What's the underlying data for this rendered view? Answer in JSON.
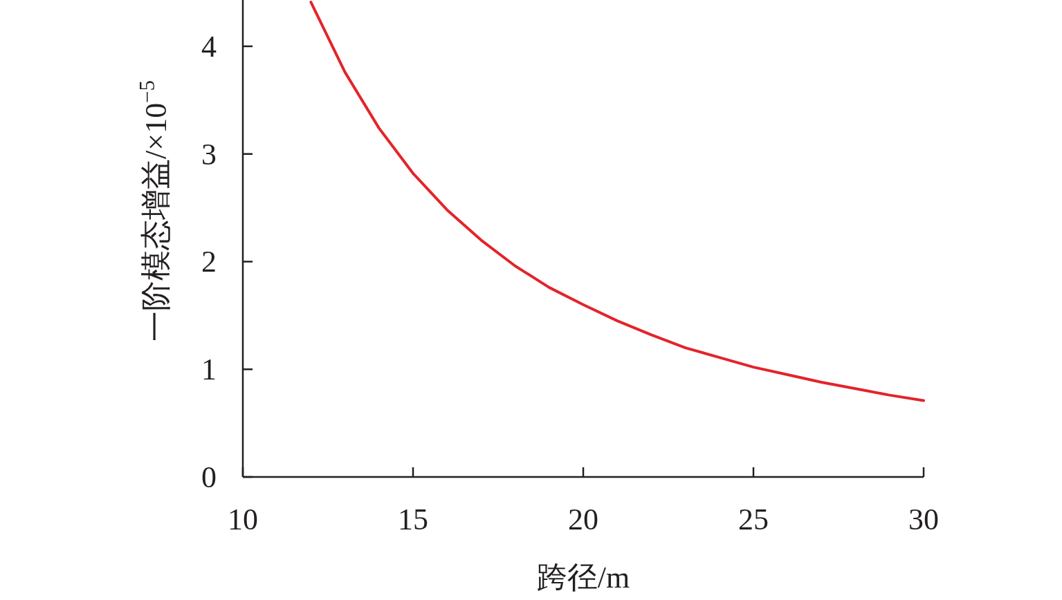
{
  "chart_data": {
    "type": "line",
    "xlabel": "跨径/m",
    "ylabel": "一阶模态增益/×10$^{−5}$",
    "x": [
      12,
      13,
      14,
      15,
      16,
      17,
      18,
      19,
      20,
      21,
      22,
      23,
      24,
      25,
      26,
      27,
      28,
      29,
      30
    ],
    "series": [
      {
        "color": "#e3242b",
        "values": [
          4.41,
          3.76,
          3.24,
          2.82,
          2.48,
          2.2,
          1.96,
          1.76,
          1.6,
          1.45,
          1.32,
          1.2,
          1.11,
          1.02,
          0.95,
          0.88,
          0.82,
          0.76,
          0.71
        ]
      }
    ],
    "xlim": [
      10,
      30
    ],
    "xticks": [
      10,
      15,
      20,
      25,
      30
    ],
    "ylim": [
      0,
      4.43
    ],
    "yticks": [
      0,
      1,
      2,
      3,
      4
    ]
  }
}
